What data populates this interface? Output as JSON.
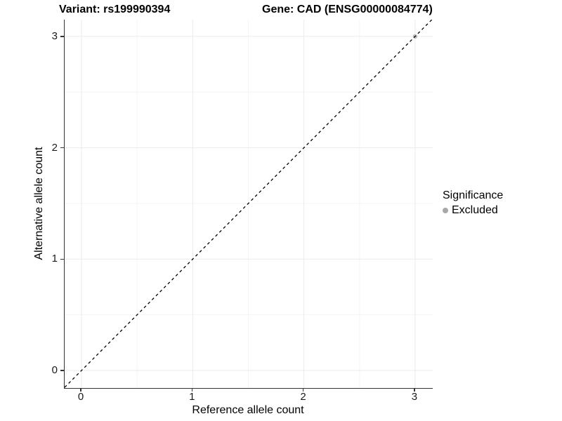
{
  "titles": {
    "variant": "Variant: rs199990394",
    "gene": "Gene: CAD (ENSG00000084774)"
  },
  "axes": {
    "x": {
      "title": "Reference allele count"
    },
    "y": {
      "title": "Alternative allele count"
    }
  },
  "legend": {
    "title": "Significance",
    "position": "right",
    "items": [
      {
        "label": "Excluded",
        "color": "#a8a8a8"
      }
    ]
  },
  "colors": {
    "axis_line": "#333333",
    "grid_major": "#ebebeb",
    "grid_minor": "#f5f5f5",
    "reference_line": "#000000",
    "point_excluded": "#b5b5b5",
    "tick_text": "#1a1a1a"
  },
  "chart_data": {
    "type": "scatter",
    "title": "Variant: rs199990394 | Gene: CAD (ENSG00000084774)",
    "xlabel": "Reference allele count",
    "ylabel": "Alternative allele count",
    "xlim": [
      -0.15,
      3.16
    ],
    "ylim": [
      -0.16,
      3.15
    ],
    "x_ticks": [
      0,
      1,
      2,
      3
    ],
    "y_ticks": [
      0,
      1,
      2,
      3
    ],
    "x_minor": [
      0.5,
      1.5,
      2.5
    ],
    "y_minor": [
      0.5,
      1.5,
      2.5
    ],
    "grid": true,
    "series": [
      {
        "name": "Excluded",
        "color": "#b5b5b5",
        "points": [
          {
            "x": 3,
            "y": 3
          }
        ]
      }
    ],
    "reference_line": {
      "kind": "identity",
      "slope": 1,
      "intercept": 0,
      "style": "dashed",
      "color": "#000000"
    },
    "legend_position": "right"
  }
}
